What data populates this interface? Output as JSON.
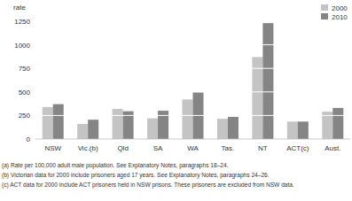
{
  "chart_data": {
    "type": "bar",
    "y_label": "rate",
    "categories": [
      "NSW",
      "Vic.(b)",
      "Qld",
      "SA",
      "WA",
      "Tas.",
      "NT",
      "ACT(c)",
      "Aust."
    ],
    "series": [
      {
        "name": "2000",
        "color": "#c4c4c4",
        "values": [
          340,
          160,
          320,
          220,
          420,
          215,
          870,
          185,
          290
        ]
      },
      {
        "name": "2010",
        "color": "#858585",
        "values": [
          370,
          205,
          295,
          300,
          495,
          235,
          1230,
          185,
          330
        ]
      }
    ],
    "ylim": [
      0,
      1250
    ],
    "yticks": [
      0,
      250,
      500,
      750,
      1000,
      1250
    ],
    "grid": true,
    "legend": "top-right",
    "annotations": [
      "(a) Rate per 100,000 adult male population. See Explanatory Notes, paragraphs 18–24.",
      "(b) Victorian data for 2000 include prisoners aged 17 years. See Explanatory Notes, paragraphs 24–26.",
      "(c) ACT data for 2000 include ACT prisoners held in NSW prisons. These prisoners are excluded from NSW data."
    ]
  }
}
